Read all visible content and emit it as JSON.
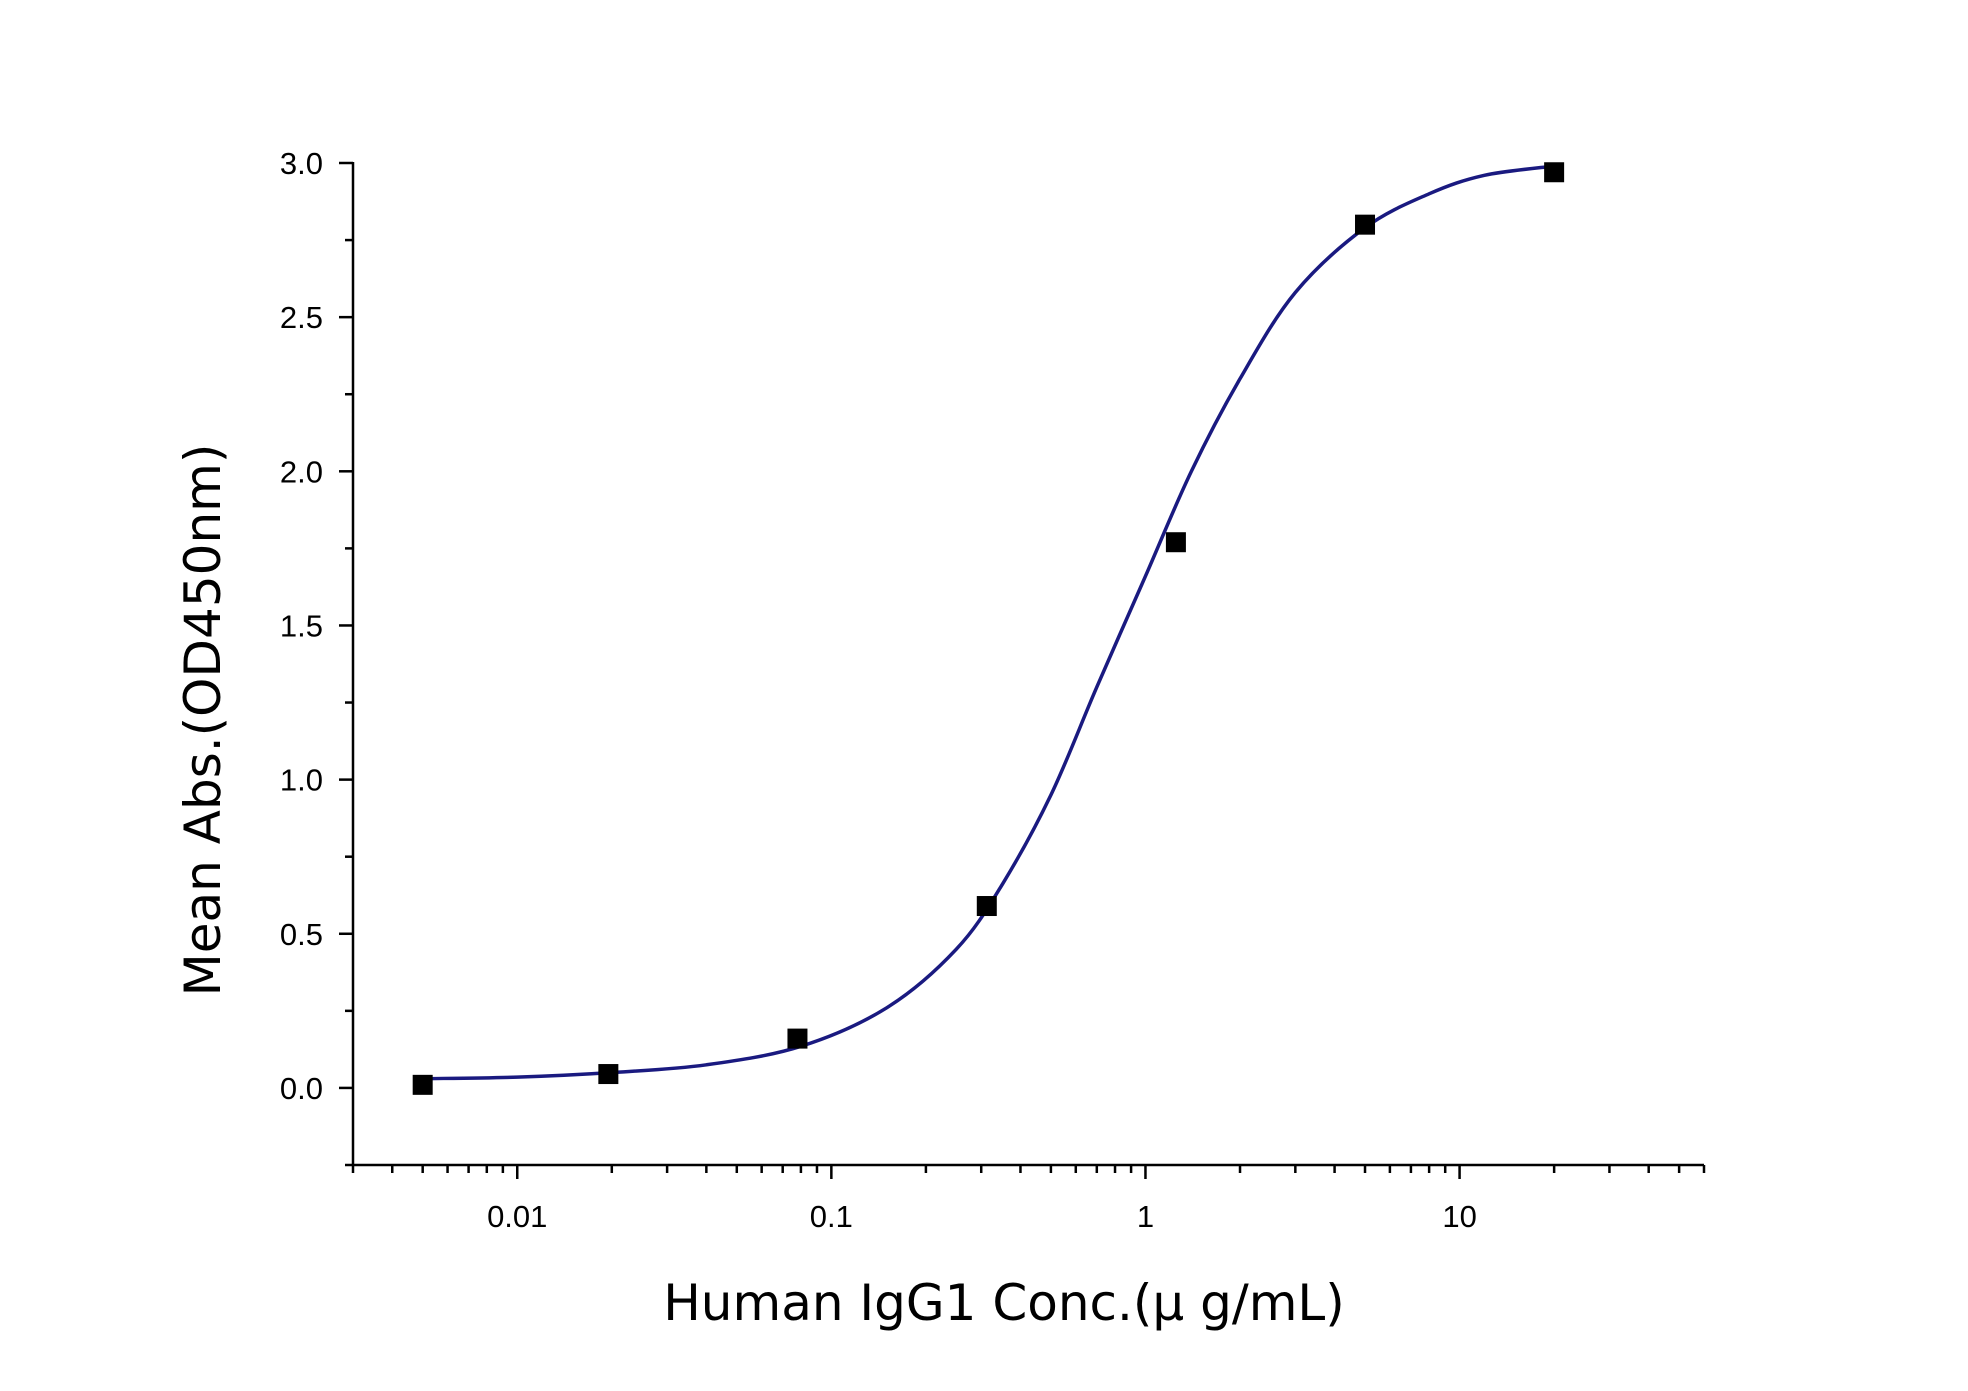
{
  "chart_data": {
    "type": "scatter",
    "title": "",
    "xlabel": "Human IgG1 Conc.(μ g/mL)",
    "ylabel": "Mean Abs.(OD450nm)",
    "x_scale": "log",
    "xlim": [
      0.003,
      60
    ],
    "ylim": [
      -0.25,
      3.0
    ],
    "x_ticks": [
      {
        "value": 0.01,
        "label": "0.01"
      },
      {
        "value": 0.1,
        "label": "0.1"
      },
      {
        "value": 1,
        "label": "1"
      },
      {
        "value": 10,
        "label": "10"
      }
    ],
    "y_ticks": [
      {
        "value": 0.0,
        "label": "0.0"
      },
      {
        "value": 0.5,
        "label": "0.5"
      },
      {
        "value": 1.0,
        "label": "1.0"
      },
      {
        "value": 1.5,
        "label": "1.5"
      },
      {
        "value": 2.0,
        "label": "2.0"
      },
      {
        "value": 2.5,
        "label": "2.5"
      },
      {
        "value": 3.0,
        "label": "3.0"
      }
    ],
    "grid": false,
    "legend": "none",
    "series": [
      {
        "kind": "points",
        "marker": "square",
        "color": "#000000",
        "x": [
          0.005,
          0.0195,
          0.078,
          0.3125,
          1.25,
          5,
          20
        ],
        "y": [
          0.01,
          0.045,
          0.16,
          0.59,
          1.77,
          2.8,
          2.97
        ]
      },
      {
        "kind": "fit",
        "color": "#1a1a80",
        "x": [
          0.005,
          0.01,
          0.02,
          0.04,
          0.08,
          0.15,
          0.25,
          0.35,
          0.5,
          0.7,
          1.0,
          1.4,
          2.0,
          3.0,
          5.0,
          8.0,
          12.0,
          20.0
        ],
        "y": [
          0.03,
          0.035,
          0.05,
          0.075,
          0.135,
          0.26,
          0.45,
          0.66,
          0.95,
          1.3,
          1.66,
          2.0,
          2.3,
          2.58,
          2.79,
          2.9,
          2.96,
          2.99
        ]
      }
    ]
  }
}
